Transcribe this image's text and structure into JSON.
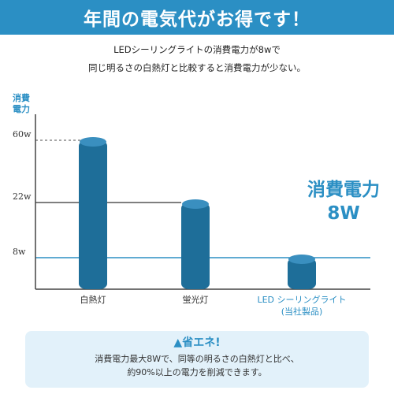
{
  "banner": {
    "title": "年間の電気代がお得です！"
  },
  "intro": {
    "line1": "LEDシーリングライトの消費電力が8wで",
    "line2": "同じ明るさの白熱灯と比較すると消費電力が少ない。"
  },
  "callout": {
    "line1": "消費電力",
    "line2": "8W"
  },
  "note": {
    "title": "▲省エネ!",
    "line1": "消費電力最大8Wで、同等の明るさの白熱灯と比べ、",
    "line2": "約90%以上の電力を削減できます。"
  },
  "colors": {
    "accent": "#2b8fc4",
    "bar": "#1e6e99",
    "note_bg": "#e2f1fa"
  },
  "chart_data": {
    "type": "bar",
    "ylabel_lines": [
      "消費",
      "電力"
    ],
    "categories": [
      {
        "lines": [
          "白熱灯"
        ]
      },
      {
        "lines": [
          "蛍光灯"
        ]
      },
      {
        "lines": [
          "LED シーリングライト",
          "(当社製品)"
        ]
      }
    ],
    "values": [
      60,
      22,
      8
    ],
    "ticks": [
      {
        "value": 8,
        "label": "8w"
      },
      {
        "value": 22,
        "label": "22w"
      },
      {
        "value": 60,
        "label": "60w"
      }
    ],
    "scale": "nonlinear",
    "ylim": [
      0,
      70
    ],
    "grid": true
  }
}
